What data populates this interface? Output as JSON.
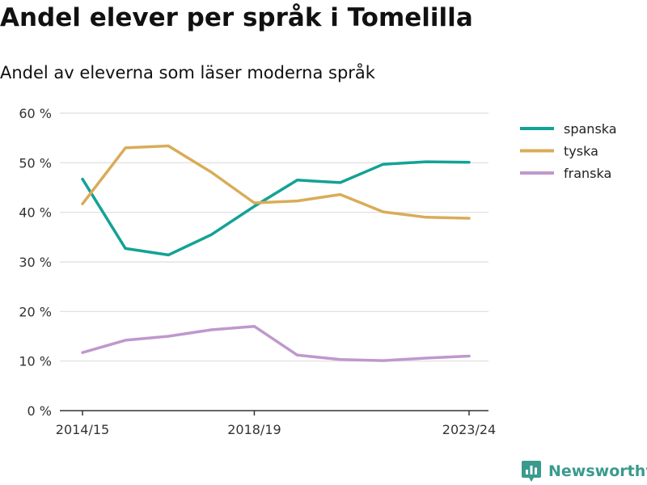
{
  "title": "Andel elever per språk i Tomelilla",
  "subtitle": "Andel av eleverna som läser moderna språk",
  "brand": "Newsworthy",
  "chart_data": {
    "type": "line",
    "x": [
      "2014/15",
      "2015/16",
      "2016/17",
      "2017/18",
      "2018/19",
      "2019/20",
      "2020/21",
      "2021/22",
      "2022/23",
      "2023/24"
    ],
    "x_tick_labels": [
      "2014/15",
      "2018/19",
      "2023/24"
    ],
    "y_ticks": [
      0,
      10,
      20,
      30,
      40,
      50,
      60
    ],
    "y_tick_labels": [
      "0 %",
      "10 %",
      "20 %",
      "30 %",
      "40 %",
      "50 %",
      "60 %"
    ],
    "ylim": [
      0,
      60
    ],
    "grid": true,
    "legend_position": "right",
    "series": [
      {
        "name": "spanska",
        "color": "#13a295",
        "values": [
          46.7,
          32.7,
          31.4,
          35.5,
          41.2,
          46.5,
          46.0,
          49.7,
          50.2,
          50.1
        ]
      },
      {
        "name": "tyska",
        "color": "#d9ac58",
        "values": [
          41.7,
          53.0,
          53.4,
          48.1,
          41.9,
          42.3,
          43.6,
          40.1,
          39.0,
          38.8
        ]
      },
      {
        "name": "franska",
        "color": "#bf98cc",
        "values": [
          11.7,
          14.2,
          15.0,
          16.3,
          17.0,
          11.2,
          10.3,
          10.1,
          10.6,
          11.0
        ]
      }
    ]
  }
}
